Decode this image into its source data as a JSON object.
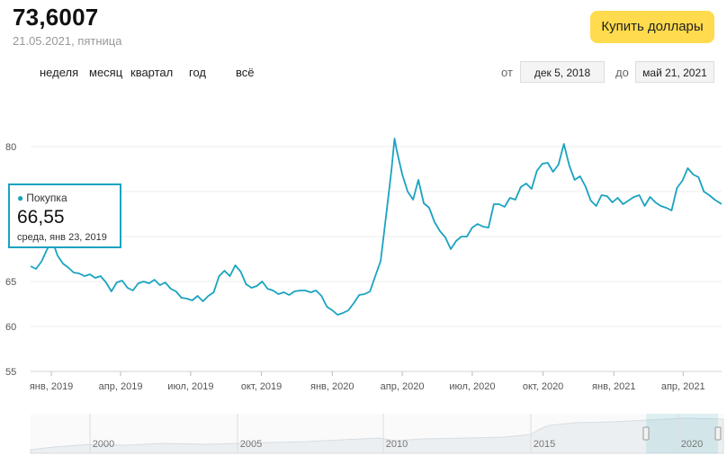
{
  "header": {
    "price": "73,6007",
    "date": "21.05.2021",
    "weekday": "пятница",
    "buy_button": "Купить доллары"
  },
  "periods": [
    "неделя",
    "месяц",
    "квартал",
    "год",
    "всё"
  ],
  "range": {
    "from_label": "от",
    "from_value": "дек 5, 2018",
    "to_label": "до",
    "to_value": "май 21, 2021"
  },
  "tooltip": {
    "series": "Покупка",
    "value": "66,55",
    "date": "среда, янв 23, 2019"
  },
  "colors": {
    "line": "#1aa3c0",
    "button": "#ffdb4d"
  },
  "chart_data": {
    "type": "line",
    "title": "",
    "ylim": [
      55,
      85
    ],
    "yticks": [
      55,
      60,
      65,
      70,
      75,
      80
    ],
    "ytick_labels": [
      "55",
      "60",
      "65",
      "",
      "",
      "80"
    ],
    "xlim": [
      "2018-12-05",
      "2021-05-21"
    ],
    "xticks": [
      {
        "x": "2019-01-01",
        "label": "янв, 2019"
      },
      {
        "x": "2019-04-01",
        "label": "апр, 2019"
      },
      {
        "x": "2019-07-01",
        "label": "июл, 2019"
      },
      {
        "x": "2019-10-01",
        "label": "окт, 2019"
      },
      {
        "x": "2020-01-01",
        "label": "янв, 2020"
      },
      {
        "x": "2020-04-01",
        "label": "апр, 2020"
      },
      {
        "x": "2020-07-01",
        "label": "июл, 2020"
      },
      {
        "x": "2020-10-01",
        "label": "окт, 2020"
      },
      {
        "x": "2021-01-01",
        "label": "янв, 2021"
      },
      {
        "x": "2021-04-01",
        "label": "апр, 2021"
      }
    ],
    "series": [
      {
        "x": [
          "2018-12-05",
          "2018-12-12",
          "2018-12-19",
          "2018-12-26",
          "2019-01-02",
          "2019-01-09",
          "2019-01-16",
          "2019-01-23",
          "2019-01-30",
          "2019-02-06",
          "2019-02-13",
          "2019-02-20",
          "2019-02-27",
          "2019-03-06",
          "2019-03-13",
          "2019-03-20",
          "2019-03-27",
          "2019-04-03",
          "2019-04-10",
          "2019-04-17",
          "2019-04-24",
          "2019-05-01",
          "2019-05-08",
          "2019-05-15",
          "2019-05-22",
          "2019-05-29",
          "2019-06-05",
          "2019-06-12",
          "2019-06-19",
          "2019-06-26",
          "2019-07-03",
          "2019-07-10",
          "2019-07-17",
          "2019-07-24",
          "2019-07-31",
          "2019-08-07",
          "2019-08-14",
          "2019-08-21",
          "2019-08-28",
          "2019-09-04",
          "2019-09-11",
          "2019-09-18",
          "2019-09-25",
          "2019-10-02",
          "2019-10-09",
          "2019-10-16",
          "2019-10-23",
          "2019-10-30",
          "2019-11-06",
          "2019-11-13",
          "2019-11-20",
          "2019-11-27",
          "2019-12-04",
          "2019-12-11",
          "2019-12-18",
          "2019-12-25",
          "2020-01-01",
          "2020-01-08",
          "2020-01-15",
          "2020-01-22",
          "2020-01-29",
          "2020-02-05",
          "2020-02-12",
          "2020-02-19",
          "2020-02-26",
          "2020-03-04",
          "2020-03-11",
          "2020-03-18",
          "2020-03-22",
          "2020-03-25",
          "2020-04-01",
          "2020-04-08",
          "2020-04-15",
          "2020-04-22",
          "2020-04-29",
          "2020-05-06",
          "2020-05-13",
          "2020-05-20",
          "2020-05-27",
          "2020-06-03",
          "2020-06-10",
          "2020-06-17",
          "2020-06-24",
          "2020-07-01",
          "2020-07-08",
          "2020-07-15",
          "2020-07-22",
          "2020-07-29",
          "2020-08-05",
          "2020-08-12",
          "2020-08-19",
          "2020-08-26",
          "2020-09-02",
          "2020-09-09",
          "2020-09-16",
          "2020-09-23",
          "2020-09-30",
          "2020-10-07",
          "2020-10-14",
          "2020-10-21",
          "2020-10-28",
          "2020-11-04",
          "2020-11-11",
          "2020-11-18",
          "2020-11-25",
          "2020-12-02",
          "2020-12-09",
          "2020-12-16",
          "2020-12-23",
          "2020-12-30",
          "2021-01-06",
          "2021-01-13",
          "2021-01-20",
          "2021-01-27",
          "2021-02-03",
          "2021-02-10",
          "2021-02-17",
          "2021-02-24",
          "2021-03-03",
          "2021-03-10",
          "2021-03-17",
          "2021-03-24",
          "2021-03-31",
          "2021-04-07",
          "2021-04-14",
          "2021-04-21",
          "2021-04-28",
          "2021-05-05",
          "2021-05-12",
          "2021-05-21"
        ],
        "values": [
          66.7,
          66.4,
          67.2,
          68.5,
          69.6,
          67.9,
          67.0,
          66.55,
          66.0,
          65.9,
          65.6,
          65.8,
          65.4,
          65.6,
          64.9,
          63.9,
          64.9,
          65.1,
          64.3,
          64.0,
          64.8,
          65.0,
          64.8,
          65.2,
          64.6,
          64.9,
          64.2,
          63.9,
          63.2,
          63.1,
          62.9,
          63.4,
          62.8,
          63.4,
          63.8,
          65.6,
          66.2,
          65.6,
          66.8,
          66.1,
          64.7,
          64.3,
          64.5,
          65.0,
          64.2,
          64.0,
          63.6,
          63.8,
          63.5,
          63.9,
          64.0,
          64.0,
          63.8,
          64.0,
          63.4,
          62.2,
          61.8,
          61.3,
          61.5,
          61.8,
          62.6,
          63.5,
          63.6,
          63.9,
          65.6,
          67.3,
          72.3,
          77.4,
          80.9,
          79.5,
          76.9,
          75.0,
          74.1,
          76.3,
          73.7,
          73.2,
          71.6,
          70.6,
          69.9,
          68.6,
          69.5,
          70.0,
          70.0,
          71.0,
          71.4,
          71.1,
          71.0,
          73.6,
          73.6,
          73.3,
          74.3,
          74.1,
          75.5,
          75.9,
          75.3,
          77.3,
          78.1,
          78.2,
          77.2,
          78.0,
          80.3,
          77.9,
          76.3,
          76.7,
          75.6,
          74.0,
          73.4,
          74.6,
          74.5,
          73.8,
          74.3,
          73.6,
          74.0,
          74.4,
          74.6,
          73.4,
          74.4,
          73.8,
          73.4,
          73.2,
          72.9,
          75.4,
          76.2,
          77.6,
          76.9,
          76.6,
          75.0,
          74.6,
          74.1,
          73.6
        ]
      }
    ]
  },
  "navigator": {
    "year_labels": [
      "2000",
      "2005",
      "2010",
      "2015",
      "2020"
    ]
  }
}
